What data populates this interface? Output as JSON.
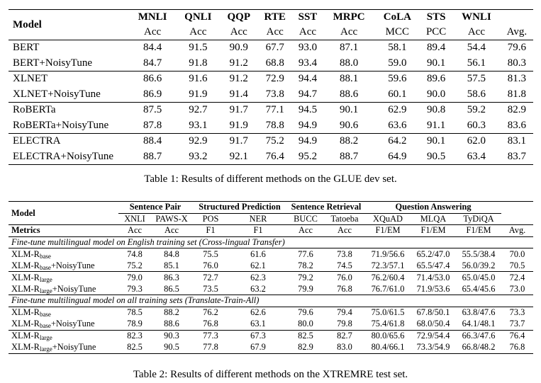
{
  "table1": {
    "header": {
      "model": "Model",
      "tasks": [
        "MNLI",
        "QNLI",
        "QQP",
        "RTE",
        "SST",
        "MRPC",
        "CoLA",
        "STS",
        "WNLI"
      ],
      "metrics": [
        "Acc",
        "Acc",
        "Acc",
        "Acc",
        "Acc",
        "Acc",
        "MCC",
        "PCC",
        "Acc",
        "Avg."
      ]
    },
    "rows": [
      {
        "model": "BERT",
        "values": [
          "84.4",
          "91.5",
          "90.9",
          "67.7",
          "93.0",
          "87.1",
          "58.1",
          "89.4",
          "54.4",
          "79.6"
        ]
      },
      {
        "model": "BERT+NoisyTune",
        "values": [
          "84.7",
          "91.8",
          "91.2",
          "68.8",
          "93.4",
          "88.0",
          "59.0",
          "90.1",
          "56.1",
          "80.3"
        ]
      },
      {
        "model": "XLNET",
        "values": [
          "86.6",
          "91.6",
          "91.2",
          "72.9",
          "94.4",
          "88.1",
          "59.6",
          "89.6",
          "57.5",
          "81.3"
        ]
      },
      {
        "model": "XLNET+NoisyTune",
        "values": [
          "86.9",
          "91.9",
          "91.4",
          "73.8",
          "94.7",
          "88.6",
          "60.1",
          "90.0",
          "58.6",
          "81.8"
        ]
      },
      {
        "model": "RoBERTa",
        "values": [
          "87.5",
          "92.7",
          "91.7",
          "77.1",
          "94.5",
          "90.1",
          "62.9",
          "90.8",
          "59.2",
          "82.9"
        ]
      },
      {
        "model": "RoBERTa+NoisyTune",
        "values": [
          "87.8",
          "93.1",
          "91.9",
          "78.8",
          "94.9",
          "90.6",
          "63.6",
          "91.1",
          "60.3",
          "83.6"
        ]
      },
      {
        "model": "ELECTRA",
        "values": [
          "88.4",
          "92.9",
          "91.7",
          "75.2",
          "94.9",
          "88.2",
          "64.2",
          "90.1",
          "62.0",
          "83.1"
        ]
      },
      {
        "model": "ELECTRA+NoisyTune",
        "values": [
          "88.7",
          "93.2",
          "92.1",
          "76.4",
          "95.2",
          "88.7",
          "64.9",
          "90.5",
          "63.4",
          "83.7"
        ]
      }
    ],
    "caption": "Table 1: Results of different methods on the GLUE dev set."
  },
  "table2": {
    "header": {
      "model": "Model",
      "groups": [
        "Sentence Pair",
        "Structured Prediction",
        "Sentence Retrieval",
        "Question Answering"
      ],
      "datasets": [
        "XNLI",
        "PAWS-X",
        "POS",
        "NER",
        "BUCC",
        "Tatoeba",
        "XQuAD",
        "MLQA",
        "TyDiQA"
      ],
      "metrics_label": "Metrics",
      "metrics": [
        "Acc",
        "Acc",
        "F1",
        "F1",
        "Acc",
        "Acc",
        "F1/EM",
        "F1/EM",
        "F1/EM",
        "Avg."
      ]
    },
    "sections": [
      {
        "title": "Fine-tune multilingual model on English training set (Cross-lingual Transfer)",
        "rows": [
          {
            "base": "XLM-R",
            "sub": "base",
            "suffix": "",
            "values": [
              "74.8",
              "84.8",
              "75.5",
              "61.6",
              "77.6",
              "73.8",
              "71.9/56.6",
              "65.2/47.0",
              "55.5/38.4",
              "70.0"
            ]
          },
          {
            "base": "XLM-R",
            "sub": "base",
            "suffix": "+NoisyTune",
            "values": [
              "75.2",
              "85.1",
              "76.0",
              "62.1",
              "78.2",
              "74.5",
              "72.3/57.1",
              "65.5/47.4",
              "56.0/39.2",
              "70.5"
            ]
          },
          {
            "base": "XLM-R",
            "sub": "large",
            "suffix": "",
            "values": [
              "79.0",
              "86.3",
              "72.7",
              "62.3",
              "79.2",
              "76.0",
              "76.2/60.4",
              "71.4/53.0",
              "65.0/45.0",
              "72.4"
            ]
          },
          {
            "base": "XLM-R",
            "sub": "large",
            "suffix": "+NoisyTune",
            "values": [
              "79.3",
              "86.5",
              "73.5",
              "63.2",
              "79.9",
              "76.8",
              "76.7/61.0",
              "71.9/53.6",
              "65.4/45.6",
              "73.0"
            ]
          }
        ]
      },
      {
        "title": "Fine-tune multilingual model on all training sets (Translate-Train-All)",
        "rows": [
          {
            "base": "XLM-R",
            "sub": "base",
            "suffix": "",
            "values": [
              "78.5",
              "88.2",
              "76.2",
              "62.6",
              "79.6",
              "79.4",
              "75.0/61.5",
              "67.8/50.1",
              "63.8/47.6",
              "73.3"
            ]
          },
          {
            "base": "XLM-R",
            "sub": "base",
            "suffix": "+NoisyTune",
            "values": [
              "78.9",
              "88.6",
              "76.8",
              "63.1",
              "80.0",
              "79.8",
              "75.4/61.8",
              "68.0/50.4",
              "64.1/48.1",
              "73.7"
            ]
          },
          {
            "base": "XLM-R",
            "sub": "large",
            "suffix": "",
            "values": [
              "82.3",
              "90.3",
              "77.3",
              "67.3",
              "82.5",
              "82.7",
              "80.0/65.6",
              "72.9/54.4",
              "66.3/47.6",
              "76.4"
            ]
          },
          {
            "base": "XLM-R",
            "sub": "large",
            "suffix": "+NoisyTune",
            "values": [
              "82.5",
              "90.5",
              "77.8",
              "67.9",
              "82.9",
              "83.0",
              "80.4/66.1",
              "73.3/54.9",
              "66.8/48.2",
              "76.8"
            ]
          }
        ]
      }
    ],
    "caption": "Table 2: Results of different methods on the XTREMRE test set."
  }
}
